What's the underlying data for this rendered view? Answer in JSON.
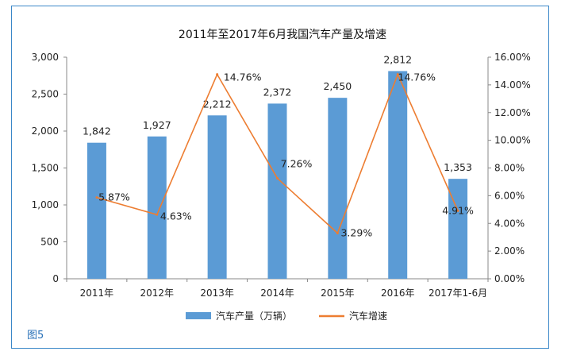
{
  "figure_label": "图5",
  "chart_data": {
    "type": "bar+line",
    "title": "2011年至2017年6月我国汽车产量及增速",
    "categories": [
      "2011年",
      "2012年",
      "2013年",
      "2014年",
      "2015年",
      "2016年",
      "2017年1-6月"
    ],
    "series": [
      {
        "name": "汽车产量（万辆）",
        "type": "bar",
        "axis": "left",
        "color": "#5b9bd5",
        "values": [
          1842,
          1927,
          2212,
          2372,
          2450,
          2812,
          1353
        ],
        "labels": [
          "1,842",
          "1,927",
          "2,212",
          "2,372",
          "2,450",
          "2,812",
          "1,353"
        ]
      },
      {
        "name": "汽车增速",
        "type": "line",
        "axis": "right",
        "color": "#ed7d31",
        "values": [
          5.87,
          4.63,
          14.76,
          7.26,
          3.29,
          14.76,
          4.91
        ],
        "labels": [
          "5.87%",
          "4.63%",
          "14.76%",
          "7.26%",
          "3.29%",
          "14.76%",
          "4.91%"
        ]
      }
    ],
    "left_axis": {
      "ylim": [
        0,
        3000
      ],
      "ticks": [
        0,
        500,
        1000,
        1500,
        2000,
        2500,
        3000
      ],
      "tick_labels": [
        "0",
        "500",
        "1,000",
        "1,500",
        "2,000",
        "2,500",
        "3,000"
      ]
    },
    "right_axis": {
      "ylim": [
        0,
        16
      ],
      "ticks": [
        0,
        2,
        4,
        6,
        8,
        10,
        12,
        14,
        16
      ],
      "tick_labels": [
        "0.00%",
        "2.00%",
        "4.00%",
        "6.00%",
        "8.00%",
        "10.00%",
        "12.00%",
        "14.00%",
        "16.00%"
      ]
    },
    "grid": false,
    "legend_position": "bottom"
  }
}
